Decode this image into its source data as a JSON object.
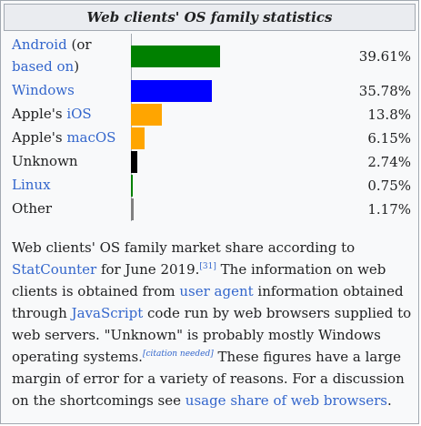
{
  "caption": "Web clients' OS family statistics",
  "chart_data": {
    "type": "bar",
    "orientation": "horizontal",
    "title": "Web clients' OS family statistics",
    "xlabel": "",
    "ylabel": "",
    "xlim": [
      0,
      40
    ],
    "series": [
      {
        "values": [
          39.61,
          35.78,
          13.8,
          6.15,
          2.74,
          0.75,
          1.17
        ],
        "display_values": [
          "39.61%",
          "35.78%",
          "13.8%",
          "6.15%",
          "2.74%",
          "0.75%",
          "1.17%"
        ],
        "colors": [
          "#008000",
          "#0000ff",
          "#ffa500",
          "#ffa500",
          "#000000",
          "#008000",
          "#808080"
        ]
      }
    ],
    "categories": [
      "Android (or based on)",
      "Windows",
      "Apple's iOS",
      "Apple's macOS",
      "Unknown",
      "Linux",
      "Other"
    ],
    "category_labels": [
      [
        {
          "text": "Android",
          "link": true
        },
        {
          "text": " (or ",
          "link": false
        },
        {
          "text": "based on",
          "link": true
        },
        {
          "text": ")",
          "link": false
        }
      ],
      [
        {
          "text": "Windows",
          "link": true
        }
      ],
      [
        {
          "text": "Apple's ",
          "link": false
        },
        {
          "text": "iOS",
          "link": true
        }
      ],
      [
        {
          "text": "Apple's ",
          "link": false
        },
        {
          "text": "macOS",
          "link": true
        }
      ],
      [
        {
          "text": "Unknown",
          "link": false
        }
      ],
      [
        {
          "text": "Linux",
          "link": true
        }
      ],
      [
        {
          "text": "Other",
          "link": false
        }
      ]
    ],
    "grid": false,
    "legend": "none"
  },
  "description": {
    "parts": [
      {
        "text": "Web clients' OS family market share according to ",
        "link": false
      },
      {
        "text": "StatCounter",
        "link": true
      },
      {
        "text": " for June 2019.",
        "link": false
      },
      {
        "text": "[31]",
        "sup": true,
        "link": true
      },
      {
        "text": " The information on web clients is obtained from ",
        "link": false
      },
      {
        "text": "user agent",
        "link": true
      },
      {
        "text": " information obtained through ",
        "link": false
      },
      {
        "text": "JavaScript",
        "link": true
      },
      {
        "text": " code run by web browsers supplied to web servers. \"Unknown\" is probably mostly Windows operating systems.",
        "link": false
      },
      {
        "text": "[citation needed]",
        "sup": true,
        "link": true,
        "italic": true
      },
      {
        "text": " These figures have a large margin of error for a variety of reasons. For a discussion on the shortcomings see ",
        "link": false
      },
      {
        "text": "usage share of web browsers",
        "link": true
      },
      {
        "text": ".",
        "link": false
      }
    ]
  }
}
